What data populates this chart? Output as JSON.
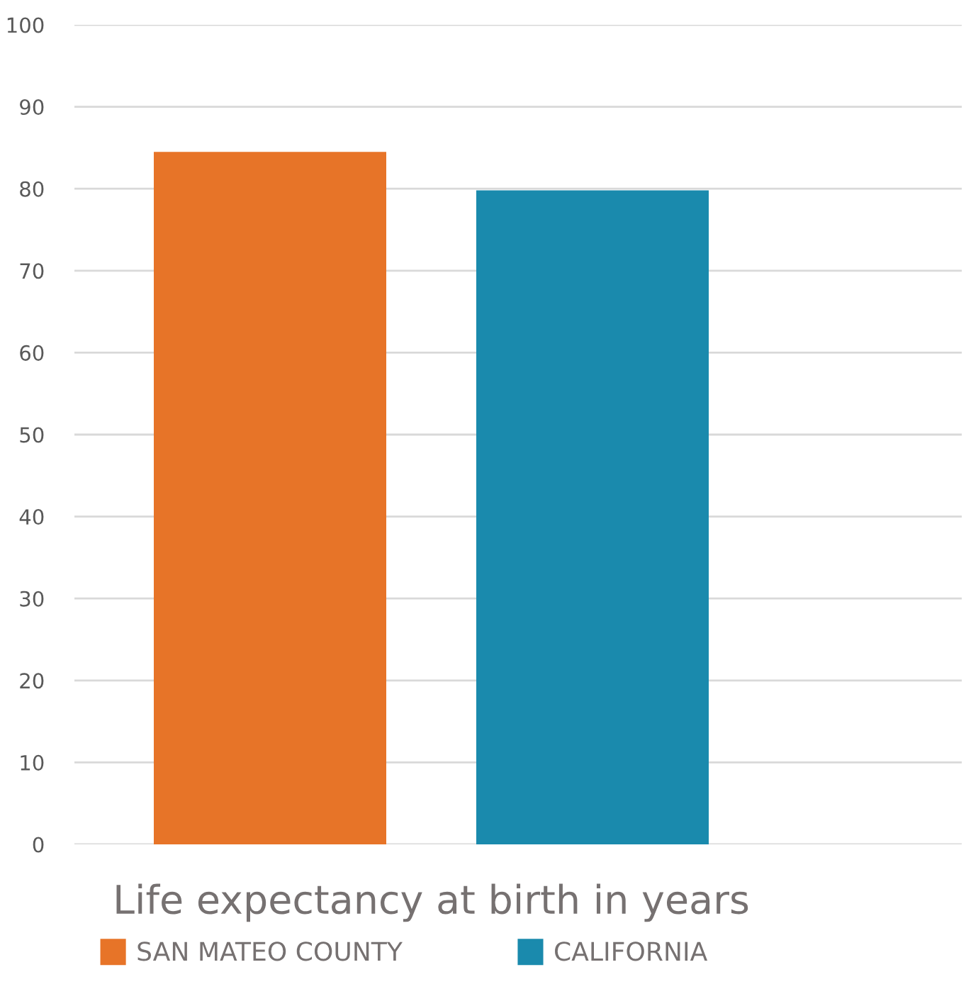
{
  "chart_data": {
    "type": "bar",
    "categories": [
      "Life expectancy at birth in years"
    ],
    "series": [
      {
        "name": "SAN MATEO COUNTY",
        "color": "#e77428",
        "values": [
          84.5
        ]
      },
      {
        "name": "CALIFORNIA",
        "color": "#1a8aad",
        "values": [
          79.8
        ]
      }
    ],
    "ylim": [
      0,
      100
    ],
    "yticks": [
      0,
      10,
      20,
      30,
      40,
      50,
      60,
      70,
      80,
      90,
      100
    ],
    "grid": "y",
    "legend": "bottom"
  }
}
